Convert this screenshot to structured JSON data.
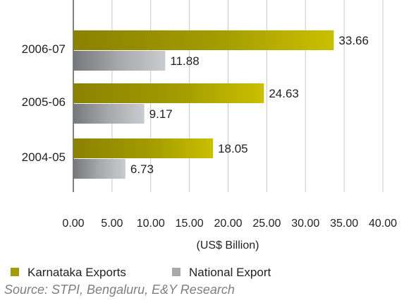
{
  "chart_data": {
    "type": "bar",
    "orientation": "horizontal",
    "categories": [
      "2006-07",
      "2005-06",
      "2004-05"
    ],
    "series": [
      {
        "name": "Karnataka Exports",
        "values": [
          33.66,
          24.63,
          18.05
        ],
        "color": "#a39b00"
      },
      {
        "name": "National Export",
        "values": [
          11.88,
          9.17,
          6.73
        ],
        "color": "#a7a9ac"
      }
    ],
    "x_ticks": [
      "0.00",
      "5.00",
      "10.00",
      "15.00",
      "20.00",
      "25.00",
      "30.00",
      "35.00",
      "40.00"
    ],
    "xlim": [
      0,
      40
    ],
    "xlabel": "(US$ Billion)",
    "grid": "vertical",
    "legend_position": "bottom-left",
    "source": "Source: STPI, Bengaluru, E&Y Research"
  }
}
